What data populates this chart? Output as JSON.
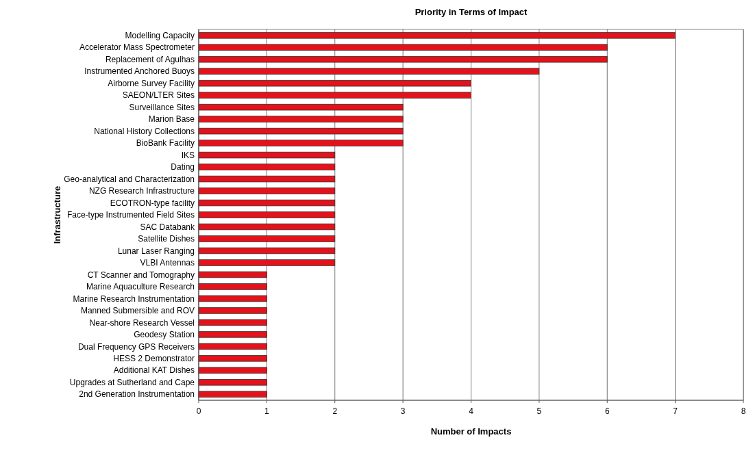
{
  "chart_data": {
    "type": "bar",
    "orientation": "horizontal",
    "title": "Priority in Terms of Impact",
    "xlabel": "Number of Impacts",
    "ylabel": "Infrastructure",
    "categories": [
      "Modelling Capacity",
      "Accelerator Mass Spectrometer",
      "Replacement of Agulhas",
      "Instrumented Anchored Buoys",
      "Airborne Survey Facility",
      "SAEON/LTER Sites",
      "Surveillance Sites",
      "Marion Base",
      "National History Collections",
      "BioBank Facility",
      "IKS",
      "Dating",
      "Geo-analytical and Characterization",
      "NZG Research Infrastructure",
      "ECOTRON-type facility",
      "Face-type Instrumented Field Sites",
      "SAC Databank",
      "Satellite Dishes",
      "Lunar Laser Ranging",
      "VLBI Antennas",
      "CT Scanner and Tomography",
      "Marine Aquaculture Research",
      "Marine Research Instrumentation",
      "Manned Submersible and ROV",
      "Near-shore Research Vessel",
      "Geodesy Station",
      "Dual Frequency GPS Receivers",
      "HESS 2 Demonstrator",
      "Additional KAT Dishes",
      "Upgrades at Sutherland and Cape",
      "2nd Generation Instrumentation"
    ],
    "values": [
      7,
      6,
      6,
      5,
      4,
      4,
      3,
      3,
      3,
      3,
      2,
      2,
      2,
      2,
      2,
      2,
      2,
      2,
      2,
      2,
      1,
      1,
      1,
      1,
      1,
      1,
      1,
      1,
      1,
      1,
      1
    ],
    "color": "#e3121b",
    "xlim": [
      0,
      8
    ],
    "xticks": [
      0,
      1,
      2,
      3,
      4,
      5,
      6,
      7,
      8
    ],
    "grid": "x"
  }
}
